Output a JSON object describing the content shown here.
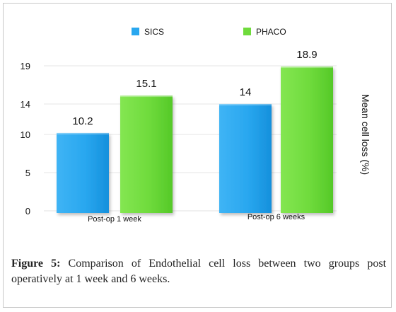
{
  "chart_data": {
    "type": "bar",
    "title": "",
    "xlabel": "",
    "ylabel": "Mean cell loss (%)",
    "ylim": [
      0,
      19
    ],
    "yticks": [
      0,
      5,
      10,
      14,
      19
    ],
    "categories": [
      "Post-op 1 week",
      "Post-op 6 weeks"
    ],
    "series": [
      {
        "name": "SICS",
        "values": [
          10.2,
          14
        ],
        "labels": [
          "10.2",
          "14"
        ],
        "color": "#29a7ef"
      },
      {
        "name": "PHACO",
        "values": [
          15.1,
          18.9
        ],
        "labels": [
          "15.1",
          "18.9"
        ],
        "color": "#6fdb3c"
      }
    ],
    "legend": "top",
    "grid": false
  },
  "caption": {
    "label": "Figure 5:",
    "text": "Comparison of Endothelial cell loss between two groups post operatively at 1 week and 6 weeks."
  }
}
